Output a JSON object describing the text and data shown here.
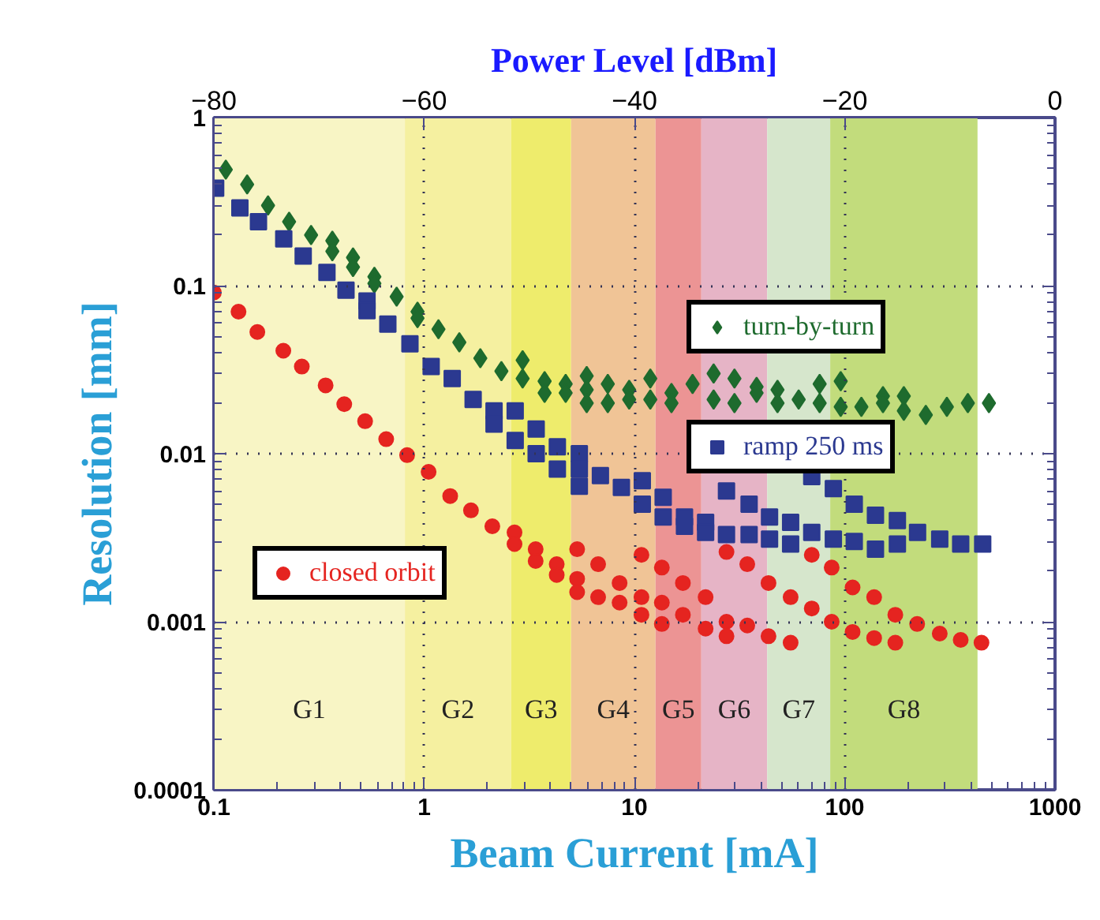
{
  "chart_data": {
    "type": "scatter",
    "xlabel": "Beam Current [mA]",
    "ylabel": "Resolution [mm]",
    "x2label": "Power Level [dBm]",
    "log": "xy",
    "grid": true,
    "legend": "top left",
    "xlim": [
      0.1,
      1000
    ],
    "xticks": [
      0.1,
      1,
      10,
      100,
      1000
    ],
    "ylim": [
      0.0001,
      1
    ],
    "yticks": [
      {
        "value": 0.0001,
        "label": "0.0001"
      },
      {
        "value": 0.001,
        "label": "0.001"
      },
      {
        "value": 0.01,
        "label": "0.01"
      },
      {
        "value": 0.1,
        "label": "0.1"
      },
      {
        "value": 1,
        "label": "1"
      }
    ],
    "x2lim": [
      -80,
      0
    ],
    "x2ticks": [
      {
        "value": -80,
        "label": "−80"
      },
      {
        "value": -60,
        "label": "−60"
      },
      {
        "value": -40,
        "label": "−40"
      },
      {
        "value": -20,
        "label": "−20"
      },
      0
    ],
    "bands": [
      {
        "axis": "x",
        "from": 0.1,
        "to": 0.81,
        "label": "G1",
        "color": "#f8f5c5"
      },
      {
        "axis": "x",
        "from": 0.81,
        "to": 2.59,
        "label": "G2",
        "color": "#f5f0a0"
      },
      {
        "axis": "x",
        "from": 2.59,
        "to": 5.0,
        "label": "G3",
        "color": "#eeec6c"
      },
      {
        "axis": "x",
        "from": 5.0,
        "to": 12.6,
        "label": "G4",
        "color": "#f0c496"
      },
      {
        "axis": "x",
        "from": 12.6,
        "to": 20.8,
        "label": "G5",
        "color": "#ec9494"
      },
      {
        "axis": "x",
        "from": 20.8,
        "to": 42.8,
        "label": "G6",
        "color": "#e6b4c6"
      },
      {
        "axis": "x",
        "from": 42.8,
        "to": 85.3,
        "label": "G7",
        "color": "#d6e6cc"
      },
      {
        "axis": "x",
        "from": 85.3,
        "to": 428,
        "label": "G8",
        "color": "#c2dc7c"
      }
    ],
    "series": [
      {
        "name": "turn-by-turn",
        "color": "#1e6b2e",
        "marker": "diamond",
        "x": [
          0.114,
          0.144,
          0.181,
          0.228,
          0.29,
          0.366,
          0.366,
          0.459,
          0.459,
          0.58,
          0.58,
          0.74,
          0.93,
          0.93,
          1.17,
          1.47,
          1.85,
          2.33,
          2.94,
          2.94,
          3.74,
          3.74,
          4.71,
          4.71,
          5.93,
          5.93,
          5.93,
          7.47,
          7.47,
          9.44,
          9.44,
          11.9,
          11.9,
          15.0,
          15.0,
          18.9,
          23.8,
          23.8,
          29.9,
          29.9,
          38.1,
          38.1,
          47.9,
          47.9,
          60.4,
          76.0,
          76.0,
          95.7,
          95.7,
          120,
          152,
          152,
          191,
          191,
          243,
          306,
          385,
          485
        ],
        "values": [
          0.49,
          0.4,
          0.3,
          0.24,
          0.2,
          0.185,
          0.16,
          0.147,
          0.129,
          0.113,
          0.103,
          0.086,
          0.07,
          0.064,
          0.055,
          0.046,
          0.037,
          0.031,
          0.036,
          0.028,
          0.027,
          0.023,
          0.026,
          0.023,
          0.029,
          0.024,
          0.02,
          0.026,
          0.02,
          0.024,
          0.021,
          0.028,
          0.021,
          0.023,
          0.02,
          0.026,
          0.03,
          0.021,
          0.028,
          0.02,
          0.025,
          0.023,
          0.024,
          0.02,
          0.021,
          0.026,
          0.02,
          0.027,
          0.019,
          0.019,
          0.022,
          0.02,
          0.022,
          0.018,
          0.017,
          0.019,
          0.02,
          0.02
        ]
      },
      {
        "name": "ramp 250 ms",
        "color": "#2b3990",
        "marker": "square",
        "x": [
          0.102,
          0.133,
          0.163,
          0.215,
          0.266,
          0.345,
          0.425,
          0.535,
          0.535,
          0.672,
          0.856,
          1.08,
          1.36,
          1.71,
          2.15,
          2.15,
          2.71,
          2.71,
          3.41,
          3.41,
          4.3,
          4.3,
          5.47,
          5.47,
          5.47,
          6.89,
          8.67,
          10.9,
          10.9,
          13.7,
          13.7,
          17.3,
          17.3,
          21.8,
          21.8,
          27.4,
          27.4,
          35.1,
          35.1,
          43.9,
          43.9,
          55.3,
          55.3,
          69.7,
          69.7,
          88.3,
          88.3,
          111,
          111,
          140,
          140,
          178,
          178,
          222,
          283,
          356,
          453
        ],
        "values": [
          0.38,
          0.29,
          0.24,
          0.19,
          0.15,
          0.12,
          0.094,
          0.081,
          0.071,
          0.059,
          0.045,
          0.033,
          0.028,
          0.021,
          0.018,
          0.015,
          0.018,
          0.012,
          0.014,
          0.01,
          0.011,
          0.0081,
          0.01,
          0.0081,
          0.0064,
          0.0074,
          0.0063,
          0.0069,
          0.005,
          0.0055,
          0.0042,
          0.0042,
          0.0037,
          0.0039,
          0.0034,
          0.006,
          0.0033,
          0.005,
          0.0033,
          0.0042,
          0.0031,
          0.0039,
          0.0029,
          0.0073,
          0.0034,
          0.0062,
          0.0031,
          0.005,
          0.003,
          0.0043,
          0.0027,
          0.004,
          0.0029,
          0.0034,
          0.0031,
          0.0029,
          0.0029
        ]
      },
      {
        "name": "closed orbit",
        "color": "#e52420",
        "marker": "circle",
        "x": [
          0.1,
          0.131,
          0.161,
          0.214,
          0.262,
          0.34,
          0.417,
          0.524,
          0.66,
          0.83,
          1.05,
          1.33,
          1.67,
          2.11,
          2.69,
          2.69,
          3.39,
          3.39,
          4.27,
          4.27,
          5.34,
          5.34,
          5.34,
          6.72,
          6.72,
          8.5,
          8.5,
          10.8,
          10.8,
          10.8,
          13.5,
          13.5,
          13.5,
          17.0,
          17.0,
          21.8,
          21.8,
          27.4,
          27.4,
          27.4,
          34.4,
          34.4,
          43.4,
          43.4,
          55.3,
          55.3,
          69.7,
          69.7,
          86.7,
          86.7,
          109,
          109,
          138,
          138,
          174,
          174,
          221,
          283,
          356,
          447
        ],
        "values": [
          0.091,
          0.07,
          0.053,
          0.041,
          0.033,
          0.0255,
          0.0197,
          0.0156,
          0.0122,
          0.0098,
          0.0078,
          0.0056,
          0.0046,
          0.0037,
          0.0034,
          0.0029,
          0.0027,
          0.0023,
          0.0022,
          0.0019,
          0.0027,
          0.0018,
          0.0015,
          0.0022,
          0.0014,
          0.0017,
          0.0013,
          0.0025,
          0.0014,
          0.0011,
          0.0021,
          0.0013,
          0.00097,
          0.0017,
          0.0011,
          0.0014,
          0.00091,
          0.0026,
          0.001,
          0.00082,
          0.0022,
          0.00095,
          0.0017,
          0.00082,
          0.0014,
          0.00075,
          0.0025,
          0.0012,
          0.0021,
          0.001,
          0.0016,
          0.00087,
          0.0014,
          0.0008,
          0.0011,
          0.00075,
          0.00097,
          0.00085,
          0.00078,
          0.00075
        ]
      }
    ]
  }
}
